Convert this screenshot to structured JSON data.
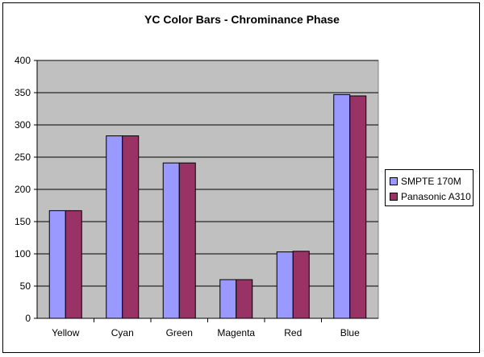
{
  "chart_data": {
    "type": "bar",
    "title": "YC Color Bars - Chrominance Phase",
    "xlabel": "",
    "ylabel": "",
    "categories": [
      "Yellow",
      "Cyan",
      "Green",
      "Magenta",
      "Red",
      "Blue"
    ],
    "series": [
      {
        "name": "SMPTE 170M",
        "color": "#9999ff",
        "values": [
          167,
          283,
          241,
          60,
          103,
          347
        ]
      },
      {
        "name": "Panasonic A310",
        "color": "#993366",
        "values": [
          167,
          283,
          241,
          60,
          104,
          345
        ]
      }
    ],
    "ylim": [
      0,
      400
    ],
    "yticks": [
      0,
      50,
      100,
      150,
      200,
      250,
      300,
      350,
      400
    ],
    "grid": true,
    "plot_background": "#c0c0c0",
    "legend_position": "right"
  }
}
